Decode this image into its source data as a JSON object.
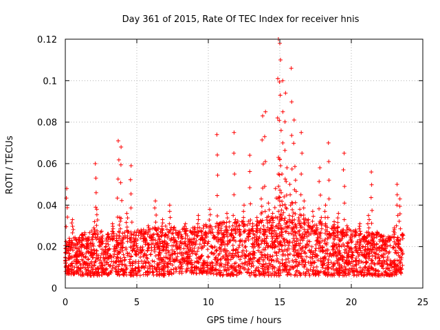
{
  "chart_data": {
    "type": "scatter",
    "title": "Day 361 of 2015, Rate Of TEC Index for receiver hnis",
    "xlabel": "GPS time / hours",
    "ylabel": "ROTI / TECUs",
    "xlim": [
      0,
      25
    ],
    "ylim": [
      0,
      0.12
    ],
    "x_ticks": [
      0,
      5,
      10,
      15,
      20,
      25
    ],
    "y_ticks": [
      0,
      0.02,
      0.04,
      0.06,
      0.08,
      0.1,
      0.12
    ],
    "x_tick_labels": [
      "0",
      "5",
      "10",
      "15",
      "20",
      "25"
    ],
    "y_tick_labels": [
      "0",
      "0.02",
      "0.04",
      "0.06",
      "0.08",
      "0.1",
      "0.12"
    ],
    "grid": true,
    "marker": "plus",
    "series": [
      {
        "color": "#ff0000",
        "x": [
          0.0,
          0.3,
          0.5,
          0.8,
          1.0,
          1.2,
          1.5,
          1.8,
          2.0,
          2.2,
          2.5,
          2.8,
          3.0,
          3.3,
          3.6,
          3.8,
          4.0,
          4.3,
          4.6,
          4.8,
          5.0,
          5.3,
          5.6,
          5.8,
          6.0,
          6.3,
          6.6,
          6.8,
          7.0,
          7.3,
          7.6,
          7.9,
          8.1,
          8.4,
          8.7,
          9.0,
          9.3,
          9.6,
          9.8,
          10.1,
          10.4,
          10.7,
          11.0,
          11.3,
          11.6,
          11.9,
          12.2,
          12.5,
          12.8,
          13.1,
          13.4,
          13.7,
          13.9,
          14.2,
          14.5,
          14.7,
          14.9,
          15.0,
          15.1,
          15.3,
          15.5,
          15.7,
          15.9,
          16.1,
          16.4,
          16.7,
          17.0,
          17.3,
          17.6,
          17.9,
          18.2,
          18.5,
          18.8,
          19.1,
          19.4,
          19.7,
          20.0,
          20.3,
          20.6,
          20.9,
          21.2,
          21.5,
          21.8,
          22.1,
          22.4,
          22.7,
          23.0,
          23.3,
          23.6,
          0.1,
          2.1,
          3.7,
          3.9,
          4.6,
          10.6,
          11.8,
          12.9,
          13.8,
          14.0,
          14.9,
          15.0,
          15.05,
          15.2,
          15.4,
          15.8,
          16.0,
          16.5,
          17.8,
          18.4,
          19.5,
          21.4,
          23.2,
          23.4
        ],
        "y": [
          0.012,
          0.02,
          0.033,
          0.015,
          0.022,
          0.026,
          0.019,
          0.017,
          0.029,
          0.038,
          0.021,
          0.016,
          0.024,
          0.031,
          0.02,
          0.034,
          0.018,
          0.036,
          0.022,
          0.019,
          0.016,
          0.028,
          0.021,
          0.03,
          0.024,
          0.042,
          0.019,
          0.033,
          0.026,
          0.04,
          0.022,
          0.027,
          0.025,
          0.031,
          0.018,
          0.029,
          0.035,
          0.023,
          0.027,
          0.038,
          0.024,
          0.03,
          0.022,
          0.036,
          0.026,
          0.033,
          0.028,
          0.04,
          0.025,
          0.031,
          0.034,
          0.043,
          0.028,
          0.041,
          0.036,
          0.048,
          0.055,
          0.062,
          0.046,
          0.044,
          0.058,
          0.05,
          0.041,
          0.052,
          0.038,
          0.042,
          0.033,
          0.037,
          0.029,
          0.034,
          0.04,
          0.026,
          0.032,
          0.036,
          0.027,
          0.03,
          0.022,
          0.028,
          0.031,
          0.024,
          0.035,
          0.021,
          0.027,
          0.025,
          0.019,
          0.023,
          0.029,
          0.021,
          0.026,
          0.048,
          0.06,
          0.071,
          0.068,
          0.059,
          0.074,
          0.075,
          0.064,
          0.083,
          0.085,
          0.12,
          0.118,
          0.11,
          0.1,
          0.094,
          0.106,
          0.081,
          0.075,
          0.058,
          0.07,
          0.065,
          0.056,
          0.05,
          0.043
        ],
        "band": {
          "hours": [
            0,
            1,
            2,
            3,
            4,
            5,
            6,
            7,
            8,
            9,
            10,
            11,
            12,
            13,
            14,
            15,
            16,
            17,
            18,
            19,
            20,
            21,
            22,
            23,
            23.6
          ],
          "low": [
            0.007,
            0.006,
            0.006,
            0.006,
            0.006,
            0.006,
            0.006,
            0.006,
            0.007,
            0.007,
            0.007,
            0.006,
            0.006,
            0.006,
            0.006,
            0.006,
            0.006,
            0.006,
            0.006,
            0.006,
            0.006,
            0.006,
            0.006,
            0.006,
            0.007
          ],
          "high": [
            0.022,
            0.026,
            0.028,
            0.027,
            0.028,
            0.028,
            0.029,
            0.03,
            0.029,
            0.03,
            0.031,
            0.032,
            0.033,
            0.032,
            0.034,
            0.036,
            0.036,
            0.033,
            0.032,
            0.03,
            0.028,
            0.027,
            0.026,
            0.025,
            0.024
          ]
        }
      }
    ]
  }
}
